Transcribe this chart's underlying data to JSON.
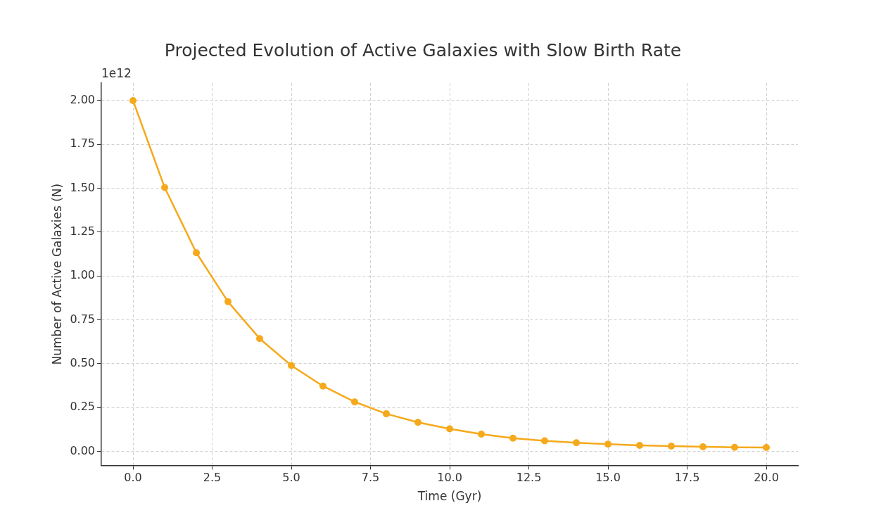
{
  "chart_data": {
    "type": "line",
    "title": "Projected Evolution of Active Galaxies with Slow Birth Rate",
    "xlabel": "Time (Gyr)",
    "ylabel": "Number of Active Galaxies (N)",
    "annotations": [
      "1e12"
    ],
    "x": [
      0,
      1,
      2,
      3,
      4,
      5,
      6,
      7,
      8,
      9,
      10,
      11,
      12,
      13,
      14,
      15,
      16,
      17,
      18,
      19,
      20
    ],
    "series": [
      {
        "color": "#f5a91b",
        "values": [
          2.0,
          1.504,
          1.132,
          0.853,
          0.643,
          0.489,
          0.372,
          0.282,
          0.214,
          0.165,
          0.128,
          0.098,
          0.075,
          0.06,
          0.049,
          0.041,
          0.034,
          0.03,
          0.026,
          0.023,
          0.022
        ]
      }
    ],
    "xlim": [
      -1,
      21
    ],
    "xticks": [
      {
        "value": 0,
        "label": "0.0"
      },
      {
        "value": 2.5,
        "label": "2.5"
      },
      {
        "value": 5,
        "label": "5.0"
      },
      {
        "value": 7.5,
        "label": "7.5"
      },
      {
        "value": 10,
        "label": "10.0"
      },
      {
        "value": 12.5,
        "label": "12.5"
      },
      {
        "value": 15,
        "label": "15.0"
      },
      {
        "value": 17.5,
        "label": "17.5"
      },
      {
        "value": 20,
        "label": "20.0"
      }
    ],
    "ylim": [
      -0.08,
      2.1
    ],
    "yticks": [
      {
        "value": 0,
        "label": "0.00"
      },
      {
        "value": 0.25,
        "label": "0.25"
      },
      {
        "value": 0.5,
        "label": "0.50"
      },
      {
        "value": 0.75,
        "label": "0.75"
      },
      {
        "value": 1,
        "label": "1.00"
      },
      {
        "value": 1.25,
        "label": "1.25"
      },
      {
        "value": 1.5,
        "label": "1.50"
      },
      {
        "value": 1.75,
        "label": "1.75"
      },
      {
        "value": 2,
        "label": "2.00"
      }
    ],
    "grid": true,
    "legend": false,
    "marker": "circle",
    "line_style": "solid"
  }
}
